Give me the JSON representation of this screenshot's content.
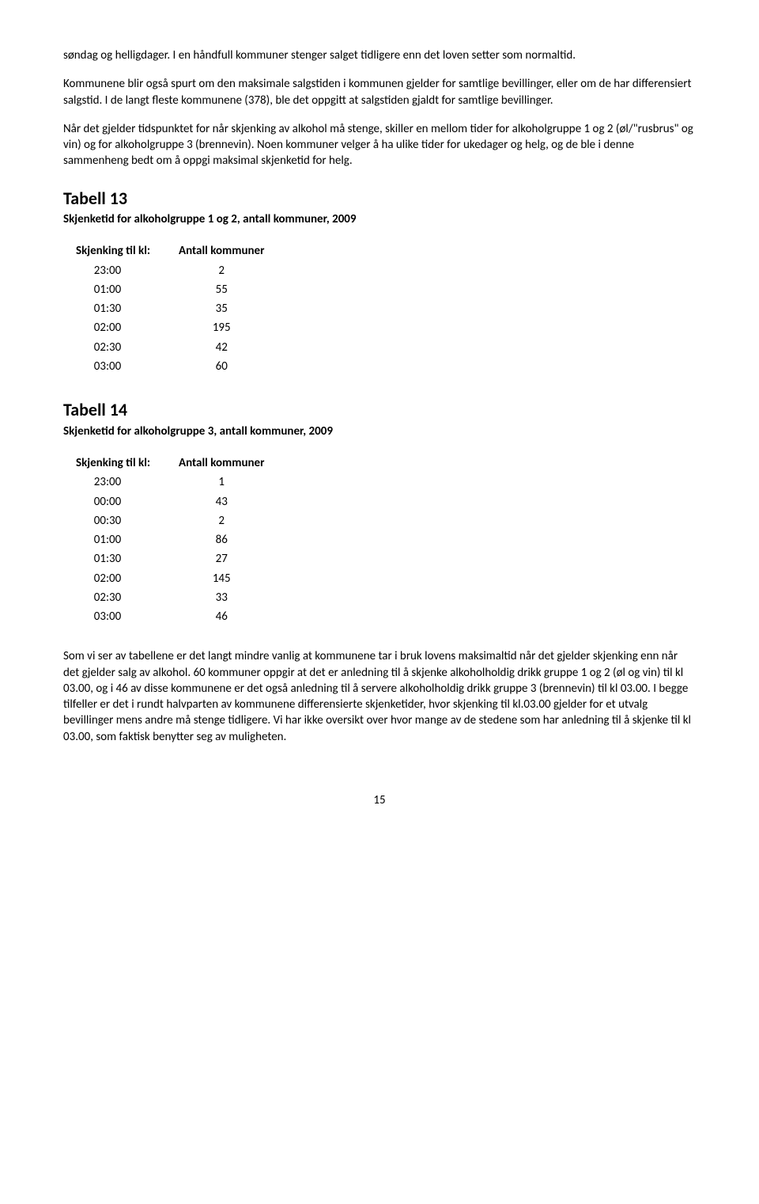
{
  "paragraphs": {
    "p1": "søndag og helligdager. I en håndfull kommuner stenger salget tidligere enn det loven setter som normaltid.",
    "p2": "Kommunene blir også spurt om den maksimale salgstiden i kommunen gjelder for samtlige bevillinger, eller om de har differensiert salgstid. I de langt fleste kommunene (378), ble det oppgitt at salgstiden gjaldt for samtlige bevillinger.",
    "p3": "Når det gjelder tidspunktet for når skjenking av alkohol må stenge, skiller en mellom tider for alkoholgruppe 1 og 2 (øl/\"rusbrus\" og vin) og for alkoholgruppe 3 (brennevin). Noen kommuner velger å ha ulike tider for ukedager og helg, og de ble i denne sammenheng bedt om å oppgi maksimal skjenketid for helg.",
    "p4": "Som vi ser av tabellene er det langt mindre vanlig at kommunene tar i bruk lovens maksimaltid når det gjelder skjenking enn når det gjelder salg av alkohol. 60 kommuner oppgir at det er anledning til å skjenke alkoholholdig drikk gruppe 1 og 2 (øl og vin) til kl 03.00, og i 46 av disse kommunene er det også anledning til å servere alkoholholdig drikk gruppe 3 (brennevin) til kl 03.00. I begge tilfeller er det i rundt halvparten av kommunene differensierte skjenketider, hvor skjenking til kl.03.00 gjelder for et utvalg bevillinger mens andre må stenge tidligere. Vi har ikke oversikt over hvor mange av de stedene som har anledning til å skjenke til kl 03.00, som faktisk benytter seg av muligheten."
  },
  "table13": {
    "heading": "Tabell 13",
    "sub": "Skjenketid for alkoholgruppe 1 og 2, antall kommuner, 2009",
    "col1": "Skjenking til kl:",
    "col2": "Antall kommuner",
    "rows": [
      {
        "time": "23:00",
        "n": "2"
      },
      {
        "time": "01:00",
        "n": "55"
      },
      {
        "time": "01:30",
        "n": "35"
      },
      {
        "time": "02:00",
        "n": "195"
      },
      {
        "time": "02:30",
        "n": "42"
      },
      {
        "time": "03:00",
        "n": "60"
      }
    ]
  },
  "table14": {
    "heading": "Tabell 14",
    "sub": "Skjenketid for alkoholgruppe 3, antall kommuner, 2009",
    "col1": "Skjenking til kl:",
    "col2": "Antall kommuner",
    "rows": [
      {
        "time": "23:00",
        "n": "1"
      },
      {
        "time": "00:00",
        "n": "43"
      },
      {
        "time": "00:30",
        "n": "2"
      },
      {
        "time": "01:00",
        "n": "86"
      },
      {
        "time": "01:30",
        "n": "27"
      },
      {
        "time": "02:00",
        "n": "145"
      },
      {
        "time": "02:30",
        "n": "33"
      },
      {
        "time": "03:00",
        "n": "46"
      }
    ]
  },
  "pageNumber": "15"
}
